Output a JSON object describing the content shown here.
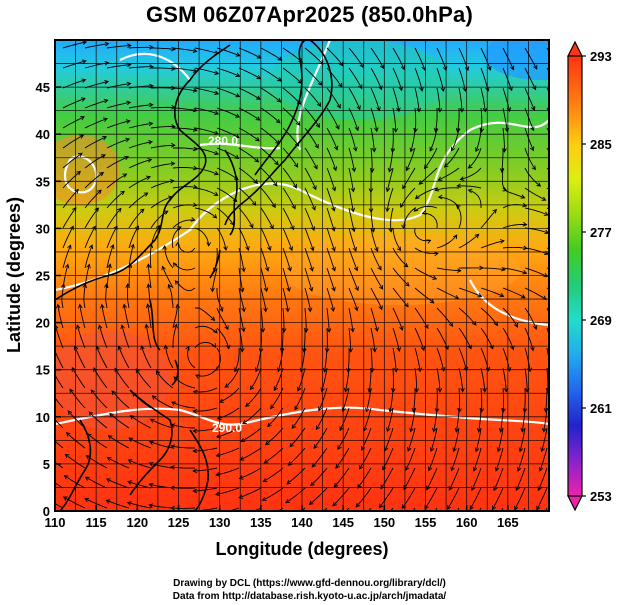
{
  "title": "GSM 06Z07Apr2025 (850.0hPa)",
  "xlabel": "Longitude (degrees)",
  "ylabel": "Latitude  (degrees)",
  "credits": {
    "line1": "Drawing by DCL (https://www.gfd-dennou.org/library/dcl/)",
    "line2": "Data from http://database.rish.kyoto-u.ac.jp/arch/jmadata/"
  },
  "contour_label": "280.0",
  "contour_label_2": "290.0",
  "chart_data": {
    "type": "heatmap",
    "variable": "850hPa temperature (K) with streamlines",
    "xlim": [
      110,
      170
    ],
    "ylim": [
      0,
      50
    ],
    "x_ticks": [
      "110",
      "115",
      "120",
      "125",
      "130",
      "135",
      "140",
      "145",
      "150",
      "155",
      "160",
      "165"
    ],
    "y_ticks": [
      "0",
      "5",
      "10",
      "15",
      "20",
      "25",
      "30",
      "35",
      "40",
      "45"
    ],
    "colorbar": {
      "min": 253,
      "max": 293,
      "tick_labels": [
        "293",
        "285",
        "277",
        "269",
        "261",
        "253"
      ],
      "colors": [
        "#ee22aa",
        "#8822cc",
        "#2222cc",
        "#2266ee",
        "#22aaee",
        "#22ddcc",
        "#22cc77",
        "#44cc22",
        "#99dd11",
        "#ddee11",
        "#ffcc11",
        "#ff8811",
        "#ff3311"
      ]
    },
    "grid": true
  },
  "colors": {
    "contour": "#ffffff",
    "streamline": "#000000",
    "coast": "#000000"
  }
}
